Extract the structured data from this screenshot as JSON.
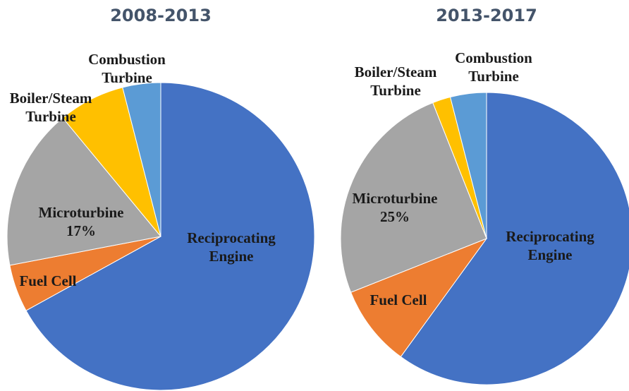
{
  "chart_data": [
    {
      "type": "pie",
      "title": "2008-2013",
      "categories": [
        "Reciprocating Engine",
        "Fuel Cell",
        "Microturbine",
        "Boiler/Steam Turbine",
        "Combustion Turbine"
      ],
      "values": [
        67,
        5,
        17,
        7,
        4
      ],
      "value_labels": [
        null,
        null,
        "17%",
        null,
        null
      ],
      "colors": [
        "#4472c4",
        "#ed7d31",
        "#a5a5a5",
        "#ffc000",
        "#5b9bd5"
      ]
    },
    {
      "type": "pie",
      "title": "2013-2017",
      "categories": [
        "Reciprocating Engine",
        "Fuel Cell",
        "Microturbine",
        "Boiler/Steam Turbine",
        "Combustion Turbine"
      ],
      "values": [
        60,
        9,
        25,
        2,
        4
      ],
      "value_labels": [
        null,
        null,
        "25%",
        null,
        null
      ],
      "colors": [
        "#4472c4",
        "#ed7d31",
        "#a5a5a5",
        "#ffc000",
        "#5b9bd5"
      ]
    }
  ]
}
